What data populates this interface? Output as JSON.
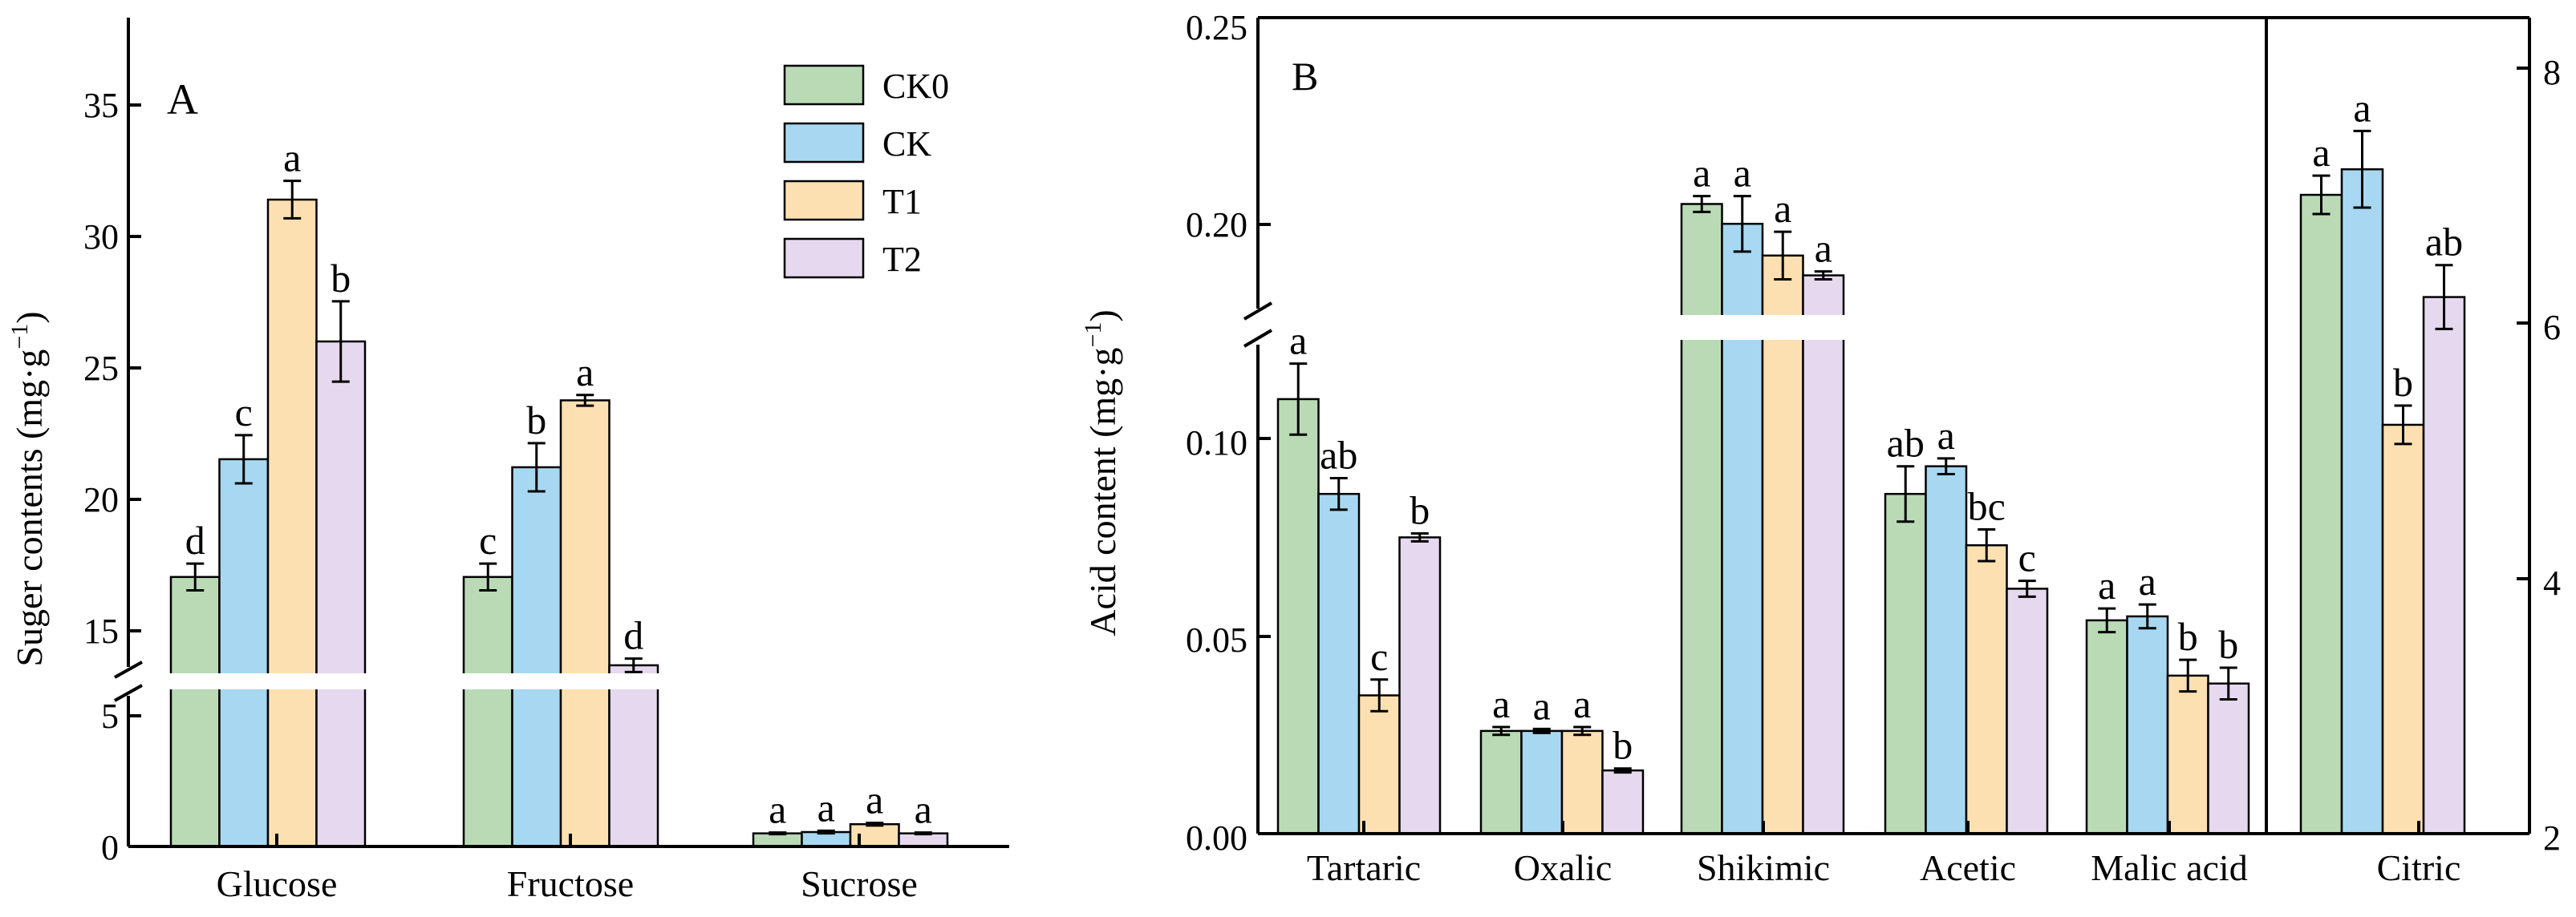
{
  "legend": [
    {
      "name": "CK0",
      "color": "#b9dab5"
    },
    {
      "name": "CK",
      "color": "#a8d8f1"
    },
    {
      "name": "T1",
      "color": "#fde0b1"
    },
    {
      "name": "T2",
      "color": "#e6d8ee"
    }
  ],
  "chart_data": [
    {
      "type": "bar",
      "panel_label": "A",
      "ylabel": "Suger contents (mg·g",
      "ylabel_sup": "−1",
      "ylabel_close": ")",
      "categories": [
        "Glucose",
        "Fructose",
        "Sucrose"
      ],
      "axis_break": {
        "lower_range": [
          0,
          6
        ],
        "upper_range": [
          13.5,
          38
        ]
      },
      "lower_ticks": [
        0,
        5
      ],
      "upper_ticks": [
        15,
        20,
        25,
        30,
        35
      ],
      "series": [
        {
          "name": "CK0",
          "values": [
            17.1,
            17.1,
            0.5
          ],
          "errors": [
            0.5,
            0.5,
            0.03
          ],
          "letters": [
            "d",
            "c",
            "a"
          ]
        },
        {
          "name": "CK",
          "values": [
            21.5,
            21.2,
            0.55
          ],
          "errors": [
            0.9,
            0.9,
            0.05
          ],
          "letters": [
            "c",
            "b",
            "a"
          ]
        },
        {
          "name": "T1",
          "values": [
            31.2,
            23.7,
            0.85
          ],
          "errors": [
            0.7,
            0.2,
            0.05
          ],
          "letters": [
            "a",
            "a",
            "a"
          ]
        },
        {
          "name": "T2",
          "values": [
            25.9,
            13.8,
            0.5
          ],
          "errors": [
            1.5,
            0.25,
            0.03
          ],
          "letters": [
            "b",
            "d",
            "a"
          ]
        }
      ]
    },
    {
      "type": "bar",
      "panel_label": "B",
      "ylabel": "Acid content (mg·g",
      "ylabel_sup": "−1",
      "ylabel_close": ")",
      "categories": [
        "Tartaric",
        "Oxalic",
        "Shikimic",
        "Acetic",
        "Malic acid"
      ],
      "axis_break": {
        "lower_range": [
          0,
          0.125
        ],
        "upper_range": [
          0.175,
          0.25
        ]
      },
      "lower_ticks": [
        "0.00",
        "0.05",
        "0.10"
      ],
      "upper_ticks": [
        "0.20",
        "0.25"
      ],
      "series": [
        {
          "name": "CK0",
          "values": [
            0.11,
            0.026,
            0.203,
            0.086,
            0.054
          ],
          "errors": [
            0.009,
            0.001,
            0.002,
            0.007,
            0.003
          ],
          "letters": [
            "a",
            "a",
            "a",
            "ab",
            "a"
          ]
        },
        {
          "name": "CK",
          "values": [
            0.086,
            0.026,
            0.198,
            0.093,
            0.055
          ],
          "errors": [
            0.004,
            0.0005,
            0.007,
            0.002,
            0.003
          ],
          "letters": [
            "ab",
            "a",
            "a",
            "a",
            "a"
          ]
        },
        {
          "name": "T1",
          "values": [
            0.035,
            0.026,
            0.19,
            0.073,
            0.04
          ],
          "errors": [
            0.004,
            0.001,
            0.006,
            0.004,
            0.004
          ],
          "letters": [
            "c",
            "a",
            "a",
            "bc",
            "b"
          ]
        },
        {
          "name": "T2",
          "values": [
            0.075,
            0.016,
            0.185,
            0.062,
            0.038
          ],
          "errors": [
            0.001,
            0.0005,
            0.001,
            0.002,
            0.004
          ],
          "letters": [
            "b",
            "b",
            "a",
            "c",
            "b"
          ]
        }
      ]
    },
    {
      "type": "bar",
      "panel_label": "",
      "axis_side": "right",
      "categories": [
        "Citric"
      ],
      "ylim": [
        2,
        8.5
      ],
      "ticks": [
        2,
        4,
        6,
        8
      ],
      "series": [
        {
          "name": "CK0",
          "values": [
            7.0
          ],
          "errors": [
            0.15
          ],
          "letters": [
            "a"
          ]
        },
        {
          "name": "CK",
          "values": [
            7.2
          ],
          "errors": [
            0.3
          ],
          "letters": [
            "a"
          ]
        },
        {
          "name": "T1",
          "values": [
            5.2
          ],
          "errors": [
            0.15
          ],
          "letters": [
            "b"
          ]
        },
        {
          "name": "T2",
          "values": [
            6.2
          ],
          "errors": [
            0.25
          ],
          "letters": [
            "ab"
          ]
        }
      ]
    }
  ]
}
